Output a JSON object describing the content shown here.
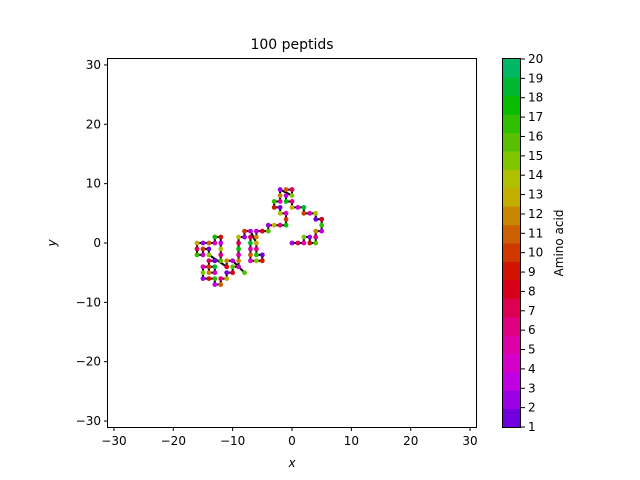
{
  "chart_data": {
    "type": "scatter",
    "title": "100 peptids",
    "xlabel": "x",
    "ylabel": "y",
    "xlim": [
      -31,
      31
    ],
    "ylim": [
      -31,
      31
    ],
    "x_ticks": [
      -30,
      -20,
      -10,
      0,
      10,
      20,
      30
    ],
    "y_ticks": [
      -30,
      -20,
      -10,
      0,
      10,
      20,
      30
    ],
    "x_tick_labels": [
      "−30",
      "−20",
      "−10",
      "0",
      "10",
      "20",
      "30"
    ],
    "y_tick_labels": [
      "−30",
      "−20",
      "−10",
      "0",
      "10",
      "20",
      "30"
    ],
    "grid": false,
    "line_color": "#000000",
    "points": [
      [
        0,
        0,
        2
      ],
      [
        1,
        0,
        7
      ],
      [
        2,
        0,
        5
      ],
      [
        2,
        1,
        15
      ],
      [
        3,
        1,
        2
      ],
      [
        3,
        0,
        9
      ],
      [
        4,
        0,
        16
      ],
      [
        4,
        1,
        6
      ],
      [
        4,
        2,
        12
      ],
      [
        5,
        2,
        3
      ],
      [
        5,
        3,
        17
      ],
      [
        5,
        4,
        8
      ],
      [
        4,
        4,
        1
      ],
      [
        4,
        5,
        14
      ],
      [
        3,
        5,
        5
      ],
      [
        2,
        5,
        10
      ],
      [
        2,
        6,
        19
      ],
      [
        1,
        6,
        4
      ],
      [
        0,
        6,
        13
      ],
      [
        0,
        7,
        6
      ],
      [
        -1,
        7,
        18
      ],
      [
        -1,
        8,
        3
      ],
      [
        -1,
        9,
        11
      ],
      [
        0,
        9,
        7
      ],
      [
        0,
        8,
        15
      ],
      [
        -2,
        9,
        2
      ],
      [
        -2,
        8,
        12
      ],
      [
        -2,
        7,
        5
      ],
      [
        -3,
        7,
        17
      ],
      [
        -3,
        6,
        9
      ],
      [
        -2,
        6,
        1
      ],
      [
        -2,
        5,
        14
      ],
      [
        -1,
        5,
        4
      ],
      [
        -1,
        4,
        10
      ],
      [
        -1,
        3,
        18
      ],
      [
        -2,
        3,
        6
      ],
      [
        -3,
        3,
        13
      ],
      [
        -4,
        3,
        2
      ],
      [
        -4,
        2,
        16
      ],
      [
        -5,
        2,
        8
      ],
      [
        -6,
        2,
        3
      ],
      [
        -6,
        1,
        12
      ],
      [
        -7,
        1,
        7
      ],
      [
        -7,
        0,
        19
      ],
      [
        -7,
        -1,
        5
      ],
      [
        -7,
        -2,
        11
      ],
      [
        -7,
        -3,
        4
      ],
      [
        -6,
        -3,
        15
      ],
      [
        -5,
        -3,
        9
      ],
      [
        -5,
        -2,
        1
      ],
      [
        -6,
        -2,
        17
      ],
      [
        -6,
        -1,
        6
      ],
      [
        -6,
        0,
        13
      ],
      [
        -7,
        2,
        3
      ],
      [
        -8,
        2,
        10
      ],
      [
        -8,
        1,
        2
      ],
      [
        -9,
        1,
        14
      ],
      [
        -9,
        0,
        7
      ],
      [
        -9,
        -1,
        18
      ],
      [
        -9,
        -2,
        5
      ],
      [
        -9,
        -3,
        12
      ],
      [
        -9,
        -4,
        4
      ],
      [
        -10,
        -4,
        16
      ],
      [
        -10,
        -5,
        8
      ],
      [
        -11,
        -5,
        1
      ],
      [
        -11,
        -6,
        13
      ],
      [
        -12,
        -6,
        6
      ],
      [
        -12,
        -7,
        11
      ],
      [
        -13,
        -7,
        3
      ],
      [
        -13,
        -6,
        17
      ],
      [
        -14,
        -6,
        9
      ],
      [
        -15,
        -6,
        2
      ],
      [
        -15,
        -5,
        15
      ],
      [
        -15,
        -4,
        5
      ],
      [
        -14,
        -4,
        10
      ],
      [
        -13,
        -4,
        19
      ],
      [
        -13,
        -5,
        4
      ],
      [
        -14,
        -5,
        12
      ],
      [
        -14,
        -3,
        7
      ],
      [
        -13,
        -3,
        1
      ],
      [
        -12,
        -3,
        16
      ],
      [
        -12,
        -2,
        6
      ],
      [
        -12,
        -1,
        14
      ],
      [
        -12,
        0,
        3
      ],
      [
        -12,
        1,
        9
      ],
      [
        -13,
        1,
        18
      ],
      [
        -13,
        0,
        5
      ],
      [
        -14,
        0,
        11
      ],
      [
        -15,
        0,
        2
      ],
      [
        -16,
        0,
        13
      ],
      [
        -16,
        -1,
        7
      ],
      [
        -16,
        -2,
        17
      ],
      [
        -15,
        -2,
        4
      ],
      [
        -15,
        -1,
        10
      ],
      [
        -14,
        -1,
        1
      ],
      [
        -14,
        -2,
        15
      ],
      [
        -11,
        -4,
        8
      ],
      [
        -11,
        -3,
        12
      ],
      [
        -10,
        -3,
        3
      ],
      [
        -8,
        -5,
        16
      ]
    ],
    "colorbar": {
      "label": "Amino acid",
      "min": 1,
      "max": 20,
      "tick_labels": [
        "1",
        "2",
        "3",
        "4",
        "5",
        "6",
        "7",
        "8",
        "9",
        "10",
        "11",
        "12",
        "13",
        "14",
        "15",
        "16",
        "17",
        "18",
        "19",
        "20"
      ],
      "colors": [
        "#7000e0",
        "#9b00e6",
        "#bf00e0",
        "#d400c8",
        "#dc00a8",
        "#de0080",
        "#dc0050",
        "#d80018",
        "#d01400",
        "#d03800",
        "#cc6000",
        "#c88600",
        "#c4ae00",
        "#b0c000",
        "#80c400",
        "#58c000",
        "#30be00",
        "#08bc00",
        "#00b830",
        "#00b864"
      ]
    }
  }
}
